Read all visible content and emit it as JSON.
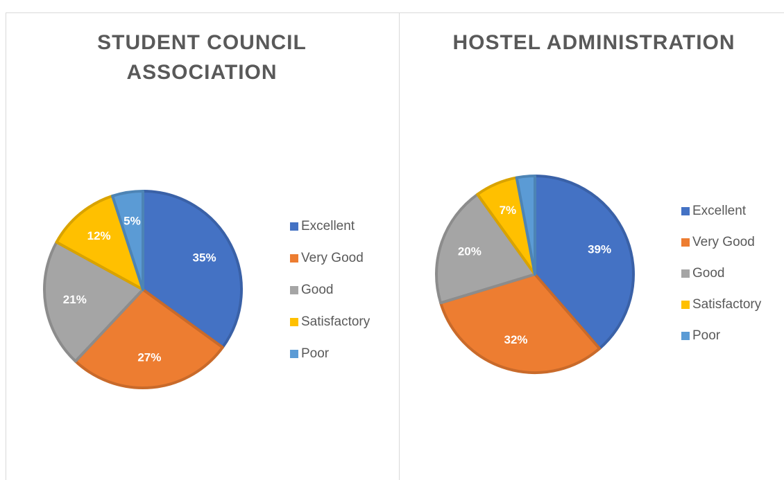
{
  "chart_data": [
    {
      "type": "pie",
      "title": "STUDENT COUNCIL ASSOCIATION",
      "categories": [
        "Excellent",
        "Very Good",
        "Good",
        "Satisfactory",
        "Poor"
      ],
      "values": [
        35,
        27,
        21,
        12,
        5
      ],
      "value_labels": [
        "35%",
        "27%",
        "21%",
        "12%",
        "5%"
      ],
      "colors": [
        "#4472c4",
        "#ed7d31",
        "#a5a5a5",
        "#ffc000",
        "#5b9bd5"
      ],
      "legend": "right"
    },
    {
      "type": "pie",
      "title": "HOSTEL ADMINISTRATION",
      "categories": [
        "Excellent",
        "Very Good",
        "Good",
        "Satisfactory",
        "Poor"
      ],
      "values": [
        39,
        32,
        20,
        7,
        3
      ],
      "value_labels": [
        "39%",
        "32%",
        "20%",
        "7%",
        null
      ],
      "colors": [
        "#4472c4",
        "#ed7d31",
        "#a5a5a5",
        "#ffc000",
        "#5b9bd5"
      ],
      "legend": "right"
    }
  ]
}
